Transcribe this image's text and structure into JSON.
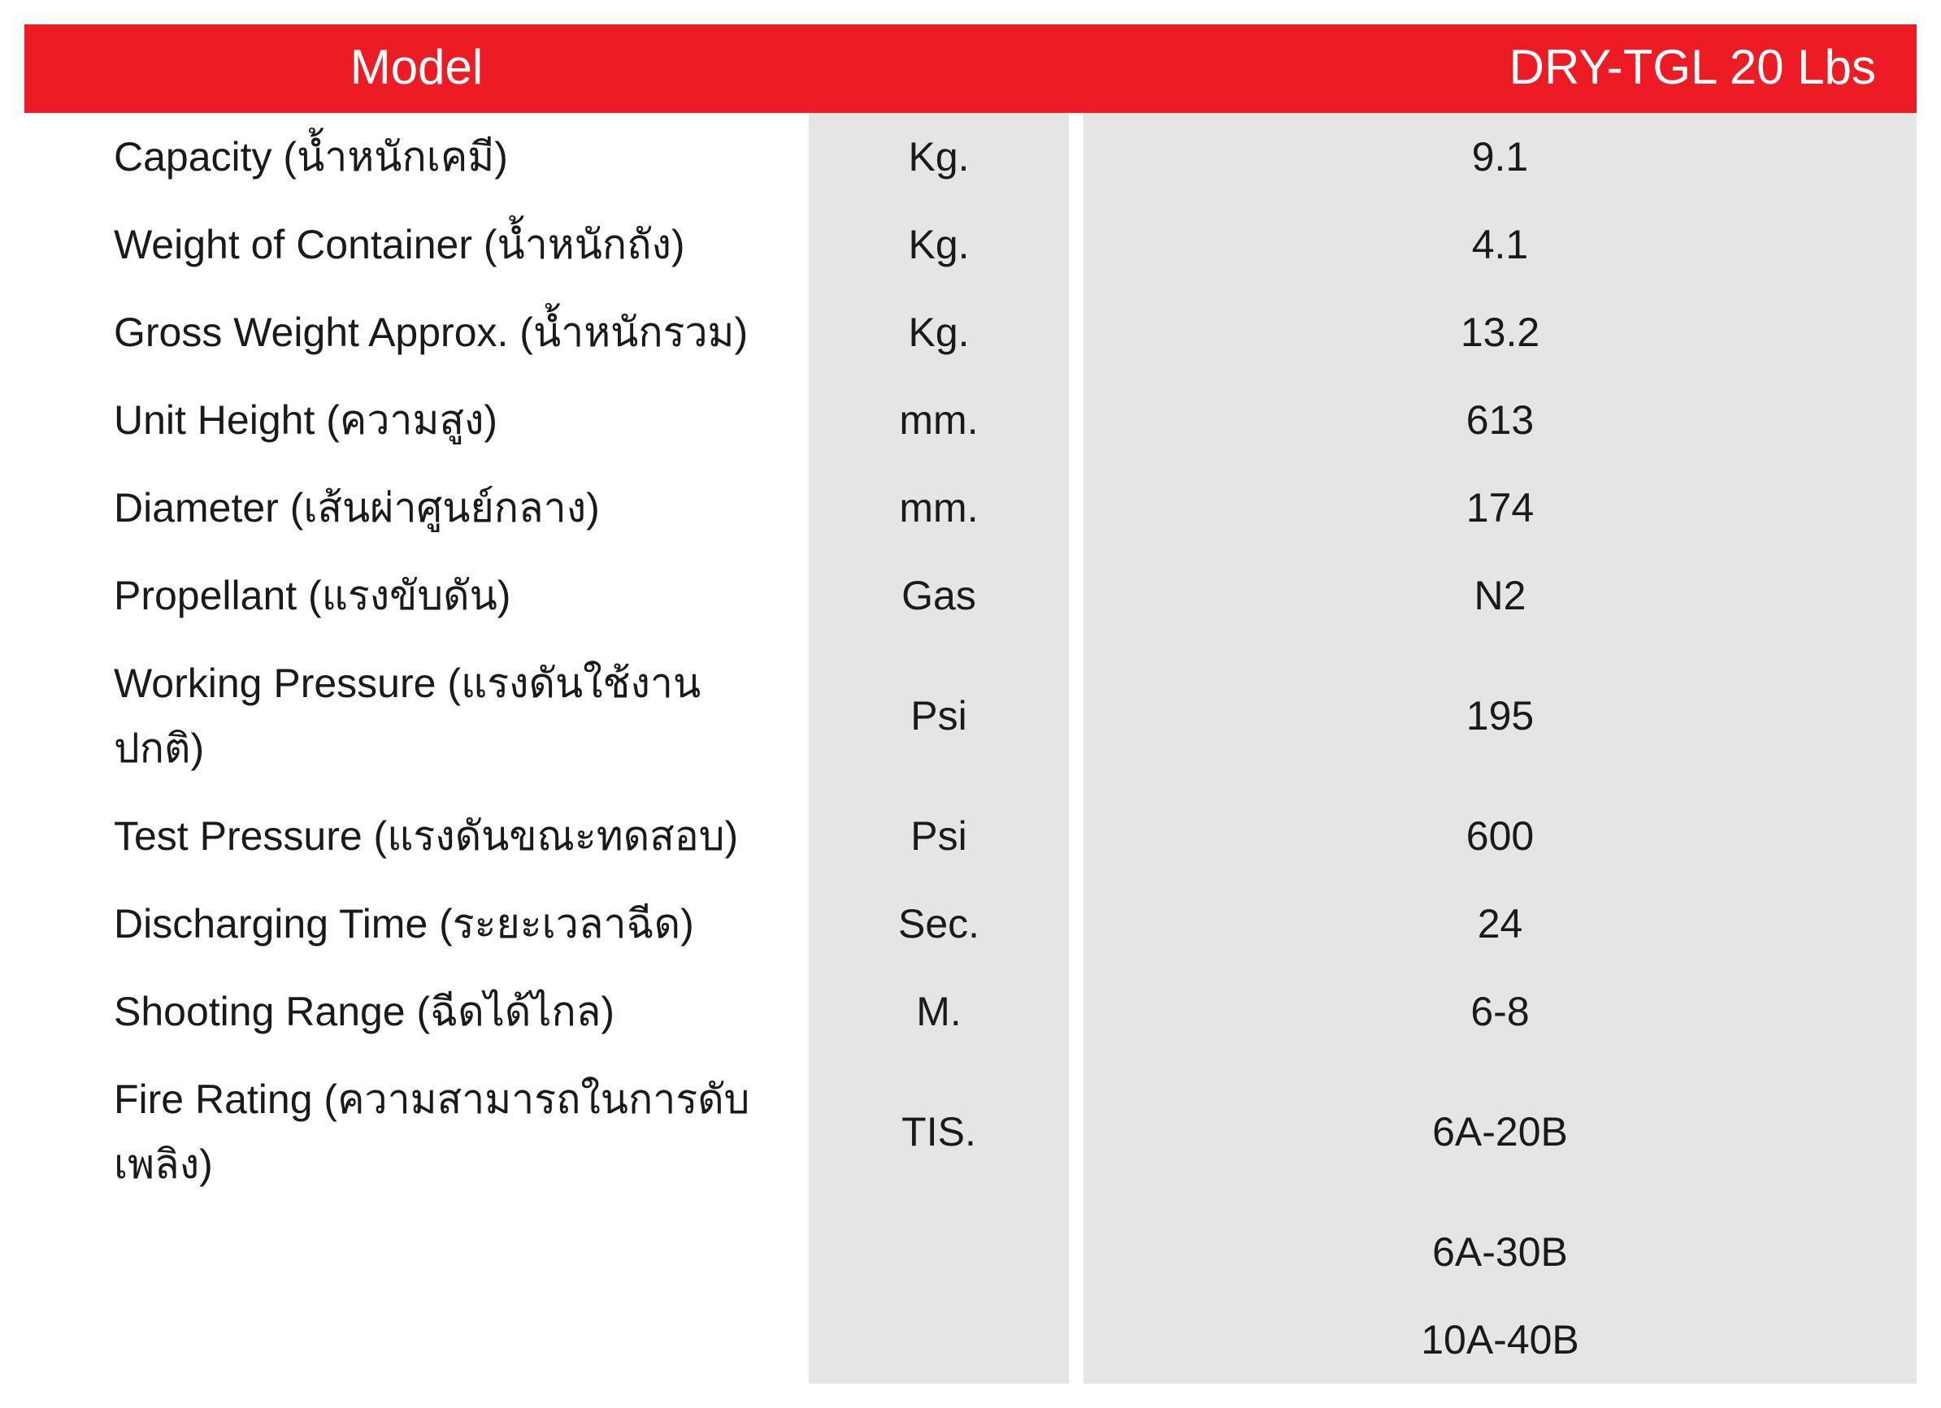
{
  "colors": {
    "header_bg": "#ed1c24",
    "header_text": "#ffffff",
    "alt_bg": "#e6e5e5",
    "white_bg": "#ffffff",
    "text": "#1a1a1a"
  },
  "header": {
    "model_label": "Model",
    "value_label": "DRY-TGL 20 Lbs"
  },
  "rows": [
    {
      "spec": "Capacity (น้ำหนักเคมี)",
      "unit": "Kg.",
      "value": "9.1"
    },
    {
      "spec": "Weight of Container (น้ำหนักถัง)",
      "unit": "Kg.",
      "value": "4.1"
    },
    {
      "spec": "Gross Weight Approx. (น้ำหนักรวม)",
      "unit": "Kg.",
      "value": "13.2"
    },
    {
      "spec": "Unit Height (ความสูง)",
      "unit": "mm.",
      "value": "613"
    },
    {
      "spec": "Diameter (เส้นผ่าศูนย์กลาง)",
      "unit": "mm.",
      "value": "174"
    },
    {
      "spec": "Propellant (แรงขับดัน)",
      "unit": "Gas",
      "value": "N2"
    },
    {
      "spec": "Working Pressure (แรงดันใช้งานปกติ)",
      "unit": "Psi",
      "value": "195"
    },
    {
      "spec": "Test Pressure (แรงดันขณะทดสอบ)",
      "unit": "Psi",
      "value": "600"
    },
    {
      "spec": "Discharging Time (ระยะเวลาฉีด)",
      "unit": "Sec.",
      "value": "24"
    },
    {
      "spec": "Shooting Range (ฉีดได้ไกล)",
      "unit": "M.",
      "value": "6-8"
    },
    {
      "spec": "Fire Rating (ความสามารถในการดับเพลิง)",
      "unit": "TIS.",
      "value": "6A-20B"
    }
  ],
  "extra_values": [
    "6A-30B",
    "10A-40B"
  ]
}
